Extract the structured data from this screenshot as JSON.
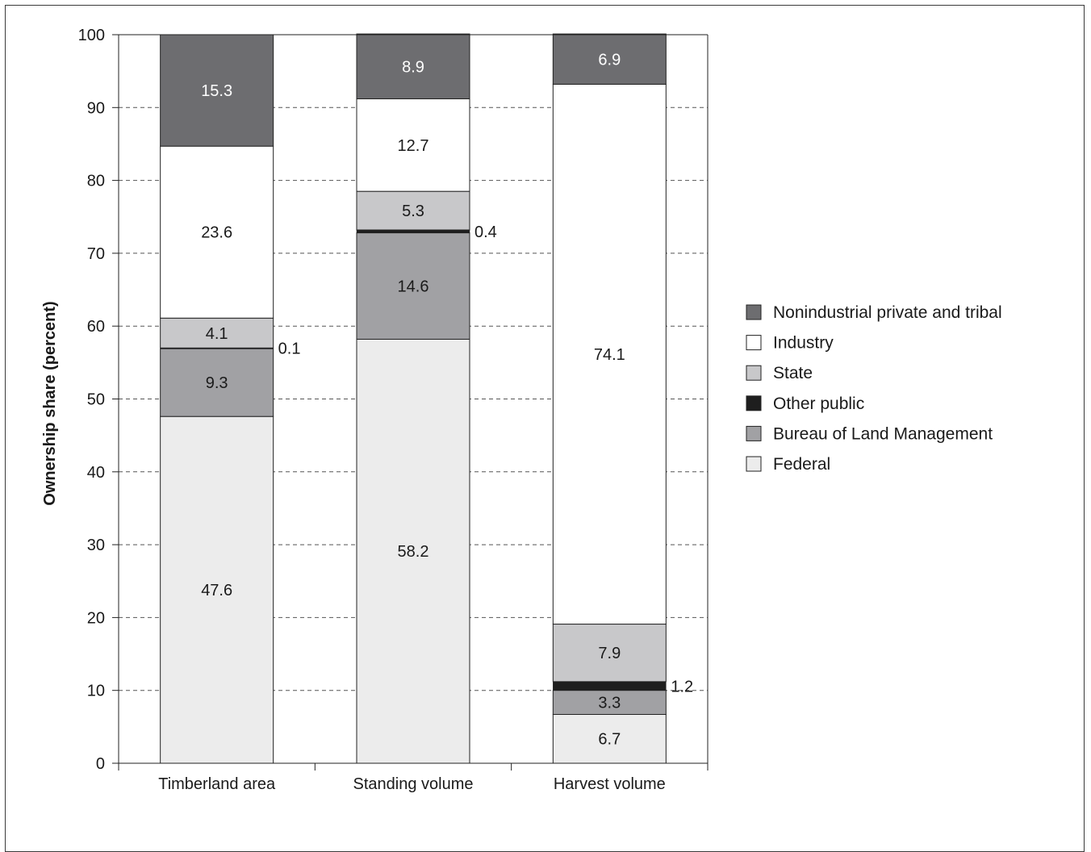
{
  "chart_data": {
    "type": "bar",
    "stacked": true,
    "ylabel": "Ownership share (percent)",
    "xlabel": "",
    "ylim": [
      0,
      100
    ],
    "yticks": [
      0,
      10,
      20,
      30,
      40,
      50,
      60,
      70,
      80,
      90,
      100
    ],
    "grid": "horizontal dashed",
    "legend_position": "right",
    "categories": [
      "Timberland area",
      "Standing volume",
      "Harvest volume"
    ],
    "series": [
      {
        "name": "Federal",
        "color": "#ececec",
        "labelColor": "#1a1a1a",
        "values": [
          47.6,
          58.2,
          6.7
        ],
        "labels": [
          "47.6",
          "58.2",
          "6.7"
        ]
      },
      {
        "name": "Bureau of Land Management",
        "color": "#a1a1a4",
        "labelColor": "#1a1a1a",
        "values": [
          9.3,
          14.6,
          3.3
        ],
        "labels": [
          "9.3",
          "14.6",
          "3.3"
        ]
      },
      {
        "name": "Other public",
        "color": "#1e1e1e",
        "labelColor": "#1a1a1a",
        "values": [
          0.1,
          0.4,
          1.2
        ],
        "labels": [
          "0.1",
          "0.4",
          "1.2"
        ],
        "labelOutside": true
      },
      {
        "name": "State",
        "color": "#c8c8ca",
        "labelColor": "#1a1a1a",
        "values": [
          4.1,
          5.3,
          7.9
        ],
        "labels": [
          "4.1",
          "5.3",
          "7.9"
        ]
      },
      {
        "name": "Industry",
        "color": "#ffffff",
        "labelColor": "#1a1a1a",
        "values": [
          23.6,
          12.7,
          74.1
        ],
        "labels": [
          "23.6",
          "12.7",
          "74.1"
        ]
      },
      {
        "name": "Nonindustrial private and tribal",
        "color": "#6d6d70",
        "labelColor": "#ffffff",
        "values": [
          15.3,
          8.9,
          6.9
        ],
        "labels": [
          "15.3",
          "8.9",
          "6.9"
        ]
      }
    ],
    "legend_order": [
      "Nonindustrial private and tribal",
      "Industry",
      "State",
      "Other public",
      "Bureau of Land Management",
      "Federal"
    ]
  }
}
